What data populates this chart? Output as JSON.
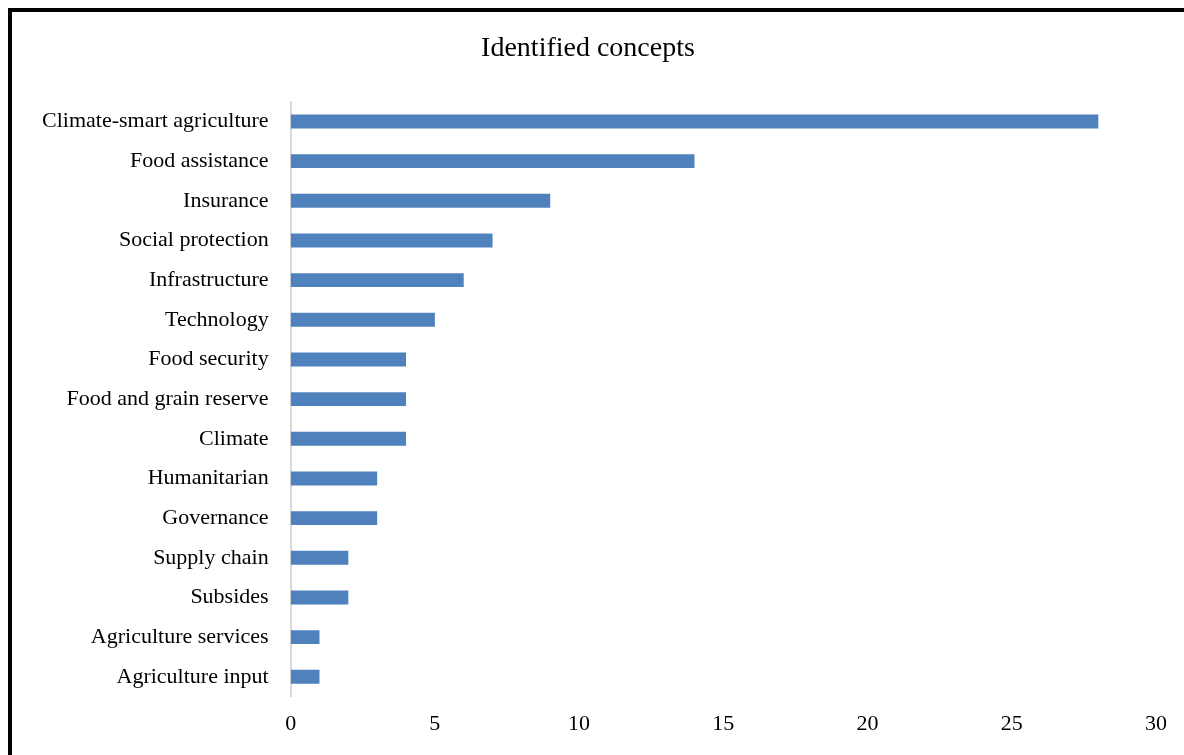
{
  "chart_data": {
    "type": "bar",
    "title": "Identified concepts",
    "orientation": "horizontal",
    "categories": [
      "Climate-smart agriculture",
      "Food assistance",
      "Insurance",
      "Social protection",
      "Infrastructure",
      "Technology",
      "Food security",
      "Food and grain reserve",
      "Climate",
      "Humanitarian",
      "Governance",
      "Supply chain",
      "Subsides",
      "Agriculture services",
      "Agriculture input"
    ],
    "values": [
      28,
      14,
      9,
      7,
      6,
      5,
      4,
      4,
      4,
      3,
      3,
      2,
      2,
      1,
      1
    ],
    "color": "#4f81bd",
    "xlim": [
      0,
      30
    ],
    "xticks": [
      0,
      5,
      10,
      15,
      20,
      25,
      30
    ],
    "grid": false,
    "legend": false
  }
}
